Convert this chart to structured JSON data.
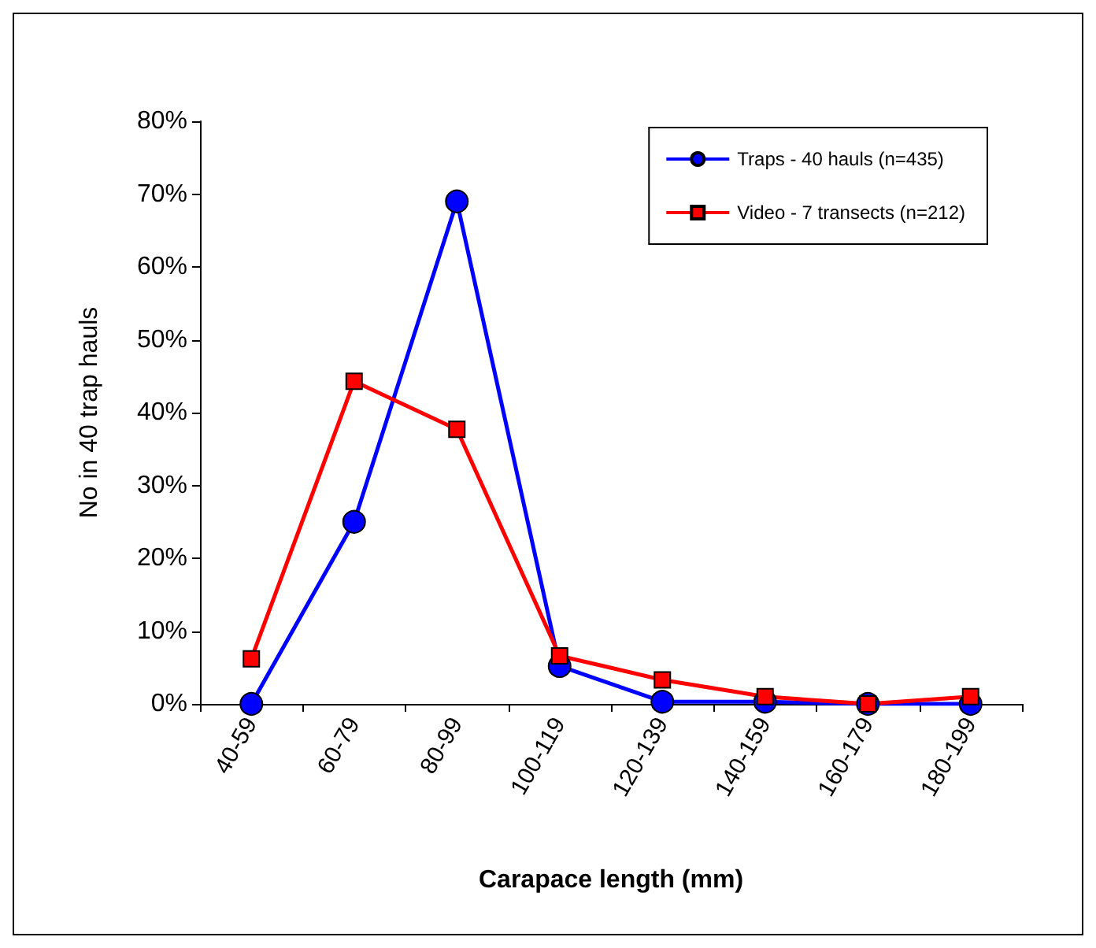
{
  "chart_data": {
    "type": "line",
    "xlabel": "Carapace length (mm)",
    "ylabel": "No in 40 trap hauls",
    "categories": [
      "40-59",
      "60-79",
      "80-99",
      "100-119",
      "120-139",
      "140-159",
      "160-179",
      "180-199"
    ],
    "series": [
      {
        "name": "Traps - 40 hauls (n=435)",
        "color": "#0000ff",
        "marker": "circle",
        "values": [
          0,
          25,
          69,
          5.2,
          0.3,
          0.3,
          0,
          0
        ]
      },
      {
        "name": "Video - 7 transects (n=212)",
        "color": "#ff0000",
        "marker": "square",
        "values": [
          6.2,
          44.3,
          37.7,
          6.6,
          3.3,
          1,
          0,
          1
        ]
      }
    ],
    "ylim": [
      0,
      80
    ],
    "yticks": [
      {
        "value": 0,
        "label": "0%"
      },
      {
        "value": 10,
        "label": "10%"
      },
      {
        "value": 20,
        "label": "20%"
      },
      {
        "value": 30,
        "label": "30%"
      },
      {
        "value": 40,
        "label": "40%"
      },
      {
        "value": 50,
        "label": "50%"
      },
      {
        "value": 60,
        "label": "60%"
      },
      {
        "value": 70,
        "label": "70%"
      },
      {
        "value": 80,
        "label": "80%"
      }
    ],
    "grid": false,
    "legend": "top right",
    "line_style": "solid"
  }
}
